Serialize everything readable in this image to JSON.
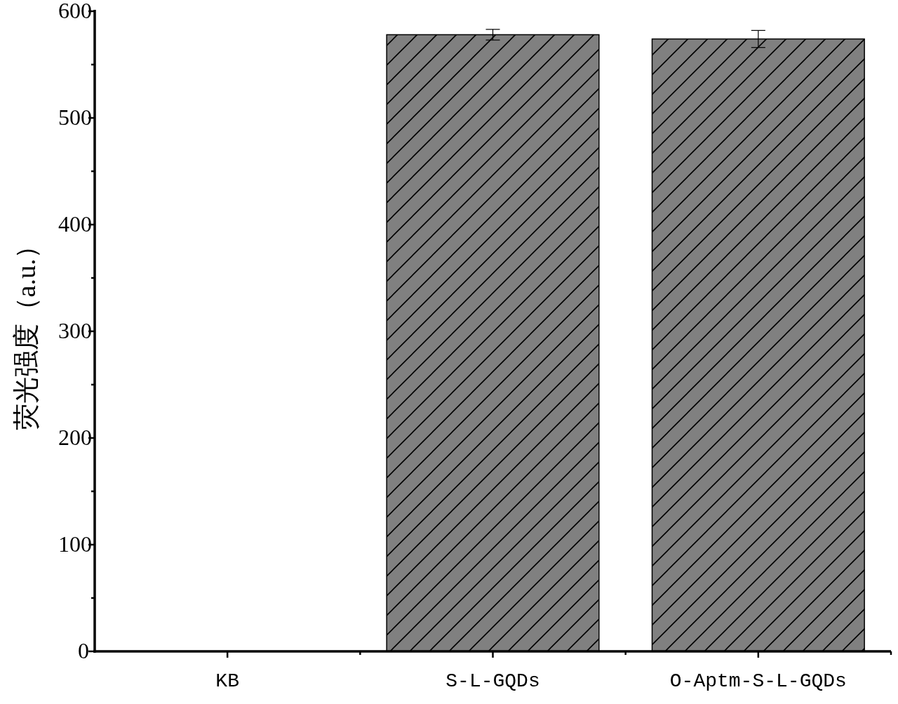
{
  "chart_data": {
    "type": "bar",
    "ylabel": "荧光强度（a.u.）",
    "categories": [
      "KB",
      "S-L-GQDs",
      "O-Aptm-S-L-GQDs"
    ],
    "values": [
      0,
      578,
      574
    ],
    "errors": [
      null,
      5,
      8
    ],
    "color": "#808080",
    "ylim": [
      0,
      600
    ],
    "yticks": [
      0,
      {
        "value": 50,
        "label": null
      },
      100,
      {
        "value": 150,
        "label": null
      },
      200,
      {
        "value": 250,
        "label": null
      },
      300,
      {
        "value": 350,
        "label": null
      },
      400,
      {
        "value": 450,
        "label": null
      },
      500,
      {
        "value": 550,
        "label": null
      },
      600
    ]
  }
}
